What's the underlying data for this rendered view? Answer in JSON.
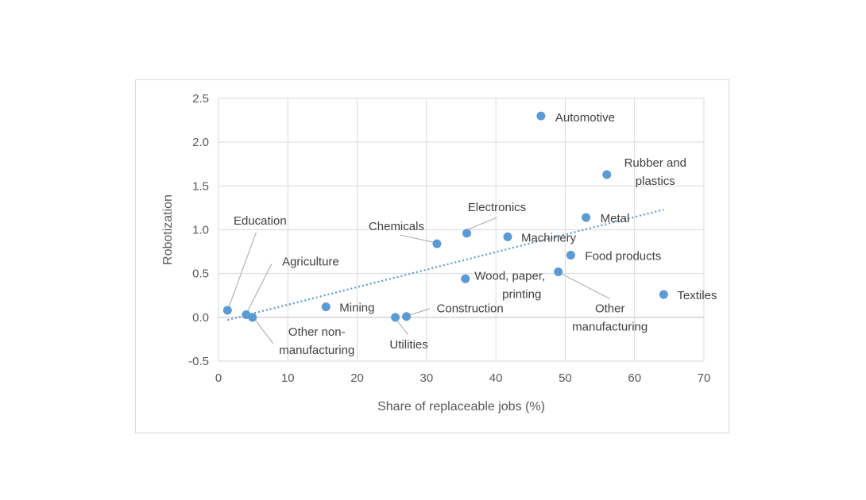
{
  "chart_data": {
    "type": "scatter",
    "xlabel": "Share of replaceable jobs (%)",
    "ylabel": "Robotization",
    "xlim": [
      0,
      70
    ],
    "ylim": [
      -0.5,
      2.5
    ],
    "x_ticks": [
      0,
      10,
      20,
      30,
      40,
      50,
      60,
      70
    ],
    "y_ticks": [
      -0.5,
      0.0,
      0.5,
      1.0,
      1.5,
      2.0,
      2.5
    ],
    "grid": "both",
    "marker_color": "#5b9bd5",
    "trendline": {
      "type": "linear",
      "style": "dotted",
      "x_range": [
        1.3,
        64.2
      ],
      "y_at_start": -0.03,
      "y_at_end": 1.23
    },
    "points": [
      {
        "label": "Automotive",
        "x": 46.5,
        "y": 2.3
      },
      {
        "label": "Rubber and plastics",
        "x": 56.0,
        "y": 1.63
      },
      {
        "label": "Metal",
        "x": 53.0,
        "y": 1.14
      },
      {
        "label": "Electronics",
        "x": 35.8,
        "y": 0.96
      },
      {
        "label": "Machinery",
        "x": 41.7,
        "y": 0.92
      },
      {
        "label": "Chemicals",
        "x": 31.5,
        "y": 0.84
      },
      {
        "label": "Food products",
        "x": 50.8,
        "y": 0.71
      },
      {
        "label": "Wood, paper, printing",
        "x": 35.6,
        "y": 0.44
      },
      {
        "label": "Other manufacturing",
        "x": 49.0,
        "y": 0.52
      },
      {
        "label": "Textiles",
        "x": 64.2,
        "y": 0.26
      },
      {
        "label": "Education",
        "x": 1.3,
        "y": 0.08
      },
      {
        "label": "Agriculture",
        "x": 4.0,
        "y": 0.03
      },
      {
        "label": "Other non-manufacturing",
        "x": 4.9,
        "y": 0.0
      },
      {
        "label": "Mining",
        "x": 15.5,
        "y": 0.12
      },
      {
        "label": "Utilities",
        "x": 25.5,
        "y": 0.0
      },
      {
        "label": "Construction",
        "x": 27.1,
        "y": 0.01
      }
    ]
  }
}
